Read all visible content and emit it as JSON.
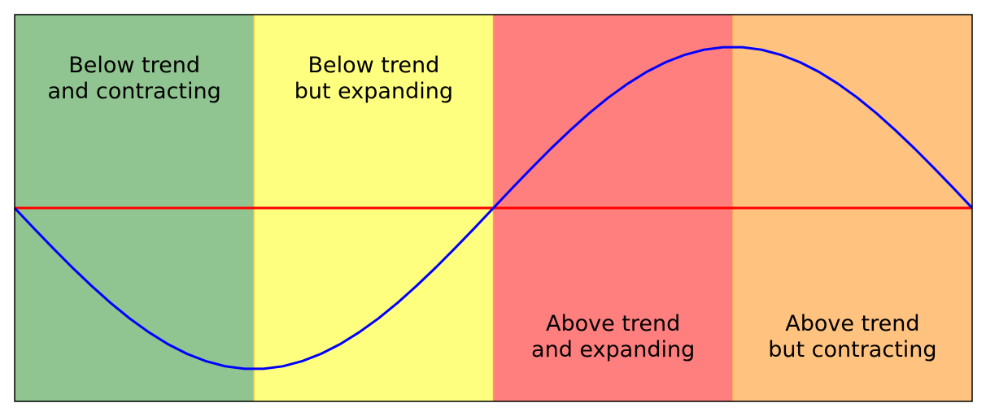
{
  "chart_data": {
    "type": "line",
    "title": "",
    "xlabel": "",
    "ylabel": "",
    "xlim": [
      0,
      360
    ],
    "ylim": [
      -1.2,
      1.2
    ],
    "grid": false,
    "legend": "none",
    "series": [
      {
        "color": "#0000ff",
        "function": "sine",
        "x_start": 0,
        "x_end": 360,
        "samples": 51
      }
    ],
    "reference_line": {
      "y": 0,
      "color": "#ff0000"
    },
    "phases": [
      {
        "x_start": 0,
        "x_end": 90,
        "lines": [
          "Below trend",
          "and contracting"
        ],
        "label_position": "top",
        "color": "#90c490",
        "edge_color": "#c8d860"
      },
      {
        "x_start": 90,
        "x_end": 180,
        "lines": [
          "Below trend",
          "but expanding"
        ],
        "label_position": "top",
        "color": "#ffff7f",
        "edge_color": "#ffd040"
      },
      {
        "x_start": 180,
        "x_end": 270,
        "lines": [
          "Above trend",
          "and expanding"
        ],
        "label_position": "bottom",
        "color": "#ff7f7f",
        "edge_color": "#ff9a60"
      },
      {
        "x_start": 270,
        "x_end": 360,
        "lines": [
          "Above trend",
          "but contracting"
        ],
        "label_position": "bottom",
        "color": "#ffc27f",
        "edge_color": "#ffb060"
      }
    ]
  }
}
